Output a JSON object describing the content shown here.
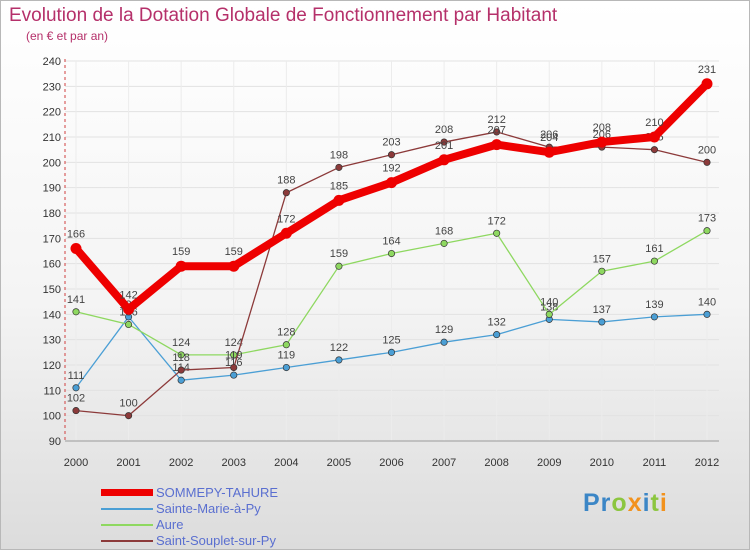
{
  "title": "Evolution de la Dotation Globale de Fonctionnement par Habitant",
  "subtitle": "(en € et par an)",
  "logo": {
    "text": "Proxiti"
  },
  "chart_data": {
    "type": "line",
    "title": "Evolution de la Dotation Globale de Fonctionnement par Habitant",
    "subtitle": "(en € et par an)",
    "xlabel": "",
    "ylabel": "",
    "ylim": [
      90,
      240
    ],
    "yticks": [
      90,
      100,
      110,
      120,
      130,
      140,
      150,
      160,
      170,
      180,
      190,
      200,
      210,
      220,
      230,
      240
    ],
    "x": [
      "2000",
      "2001",
      "2002",
      "2003",
      "2004",
      "2005",
      "2006",
      "2007",
      "2008",
      "2009",
      "2010",
      "2011",
      "2012"
    ],
    "grid": true,
    "legend_position": "bottom-left",
    "series": [
      {
        "name": "Sainte-Marie-à-Py",
        "color": "#4b9fd5",
        "values": [
          111,
          139,
          114,
          116,
          119,
          122,
          125,
          129,
          132,
          138,
          137,
          139,
          140
        ]
      },
      {
        "name": "Aure",
        "color": "#8ed860",
        "values": [
          141,
          136,
          124,
          124,
          128,
          159,
          164,
          168,
          172,
          140,
          157,
          161,
          173
        ]
      },
      {
        "name": "Saint-Souplet-sur-Py",
        "color": "#8c3a3a",
        "values": [
          102,
          100,
          118,
          119,
          188,
          198,
          203,
          208,
          212,
          206,
          206,
          205,
          200
        ]
      },
      {
        "name": "SOMMEPY-TAHURE",
        "color": "#ee0000",
        "values": [
          166,
          142,
          159,
          159,
          172,
          185,
          192,
          201,
          207,
          204,
          208,
          210,
          231
        ]
      }
    ]
  },
  "legend": [
    {
      "label": "SOMMEPY-TAHURE",
      "color": "#ee0000"
    },
    {
      "label": "Sainte-Marie-à-Py",
      "color": "#4b9fd5"
    },
    {
      "label": "Aure",
      "color": "#8ed860"
    },
    {
      "label": "Saint-Souplet-sur-Py",
      "color": "#8c3a3a"
    }
  ]
}
